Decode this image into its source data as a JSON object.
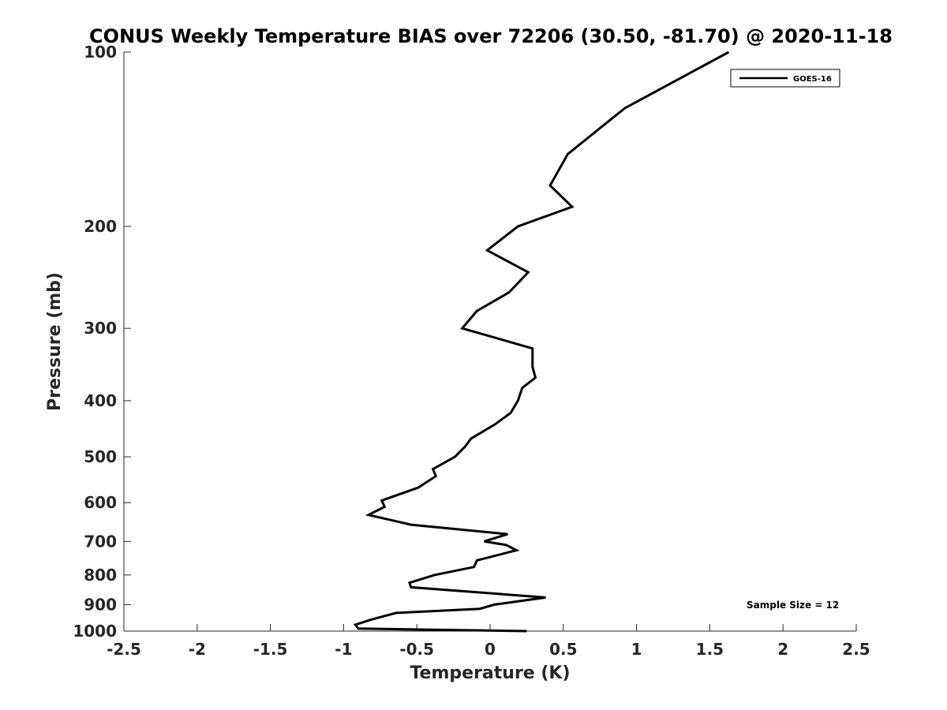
{
  "chart_data": {
    "type": "line",
    "title": "CONUS Weekly Temperature BIAS over 72206 (30.50, -81.70) @ 2020-11-18",
    "xlabel": "Temperature (K)",
    "ylabel": "Pressure (mb)",
    "xlim": [
      -2.5,
      2.5
    ],
    "ylim": [
      100,
      1000
    ],
    "y_scale": "log",
    "y_reversed": true,
    "x_ticks": [
      "-2.5",
      "-2",
      "-1.5",
      "-1",
      "-0.5",
      "0",
      "0.5",
      "1",
      "1.5",
      "2",
      "2.5"
    ],
    "y_ticks": [
      "100",
      "200",
      "300",
      "400",
      "500",
      "600",
      "700",
      "800",
      "900",
      "1000"
    ],
    "grid": false,
    "legend_position": "top-right",
    "series": [
      {
        "name": "GOES-16",
        "color": "#000000",
        "points": [
          {
            "x": 1.63,
            "y": 100
          },
          {
            "x": 0.92,
            "y": 125
          },
          {
            "x": 0.53,
            "y": 150
          },
          {
            "x": 0.41,
            "y": 170
          },
          {
            "x": 0.56,
            "y": 185
          },
          {
            "x": 0.19,
            "y": 200
          },
          {
            "x": -0.02,
            "y": 220
          },
          {
            "x": 0.26,
            "y": 240
          },
          {
            "x": 0.13,
            "y": 260
          },
          {
            "x": -0.09,
            "y": 280
          },
          {
            "x": -0.19,
            "y": 300
          },
          {
            "x": 0.29,
            "y": 325
          },
          {
            "x": 0.29,
            "y": 350
          },
          {
            "x": 0.31,
            "y": 365
          },
          {
            "x": 0.22,
            "y": 380
          },
          {
            "x": 0.19,
            "y": 400
          },
          {
            "x": 0.14,
            "y": 420
          },
          {
            "x": 0.03,
            "y": 440
          },
          {
            "x": -0.13,
            "y": 465
          },
          {
            "x": -0.17,
            "y": 480
          },
          {
            "x": -0.24,
            "y": 500
          },
          {
            "x": -0.39,
            "y": 525
          },
          {
            "x": -0.37,
            "y": 540
          },
          {
            "x": -0.49,
            "y": 565
          },
          {
            "x": -0.74,
            "y": 595
          },
          {
            "x": -0.72,
            "y": 610
          },
          {
            "x": -0.83,
            "y": 630
          },
          {
            "x": -0.54,
            "y": 655
          },
          {
            "x": 0.12,
            "y": 680
          },
          {
            "x": -0.04,
            "y": 700
          },
          {
            "x": 0.11,
            "y": 710
          },
          {
            "x": 0.18,
            "y": 725
          },
          {
            "x": -0.09,
            "y": 755
          },
          {
            "x": -0.11,
            "y": 775
          },
          {
            "x": -0.38,
            "y": 800
          },
          {
            "x": -0.55,
            "y": 825
          },
          {
            "x": -0.54,
            "y": 840
          },
          {
            "x": 0.38,
            "y": 875
          },
          {
            "x": 0.03,
            "y": 900
          },
          {
            "x": -0.07,
            "y": 915
          },
          {
            "x": -0.64,
            "y": 930
          },
          {
            "x": -0.81,
            "y": 955
          },
          {
            "x": -0.92,
            "y": 975
          },
          {
            "x": -0.9,
            "y": 990
          },
          {
            "x": 0.25,
            "y": 1000
          }
        ]
      }
    ],
    "annotations": [
      "Sample Size = 12"
    ]
  }
}
